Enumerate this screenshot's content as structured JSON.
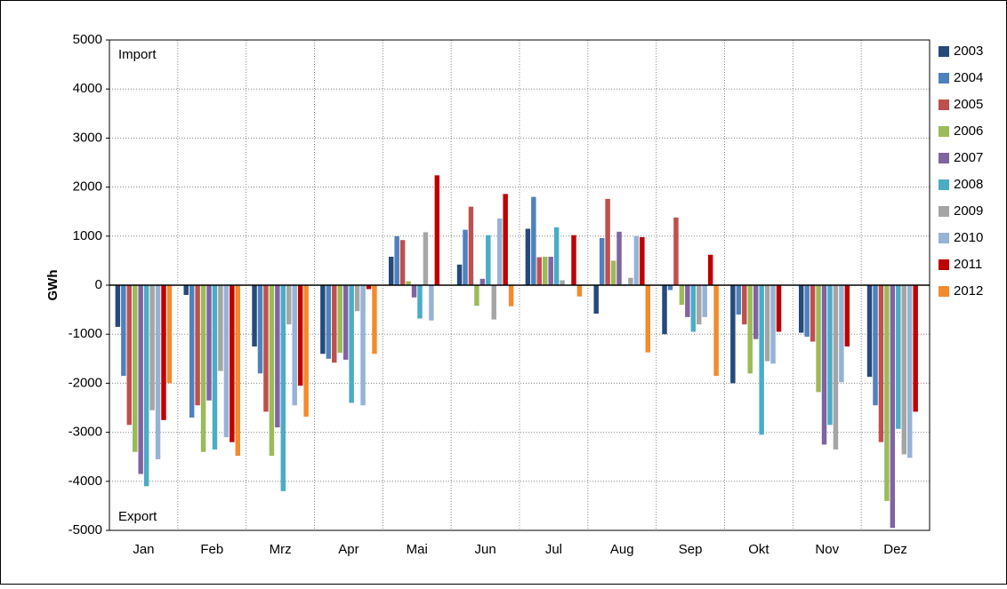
{
  "chart_data": {
    "type": "bar",
    "y_label": "GWh",
    "annotations": [
      "Import",
      "Export"
    ],
    "categories": [
      "Jan",
      "Feb",
      "Mrz",
      "Apr",
      "Mai",
      "Jun",
      "Jul",
      "Aug",
      "Sep",
      "Okt",
      "Nov",
      "Dez"
    ],
    "series": [
      {
        "name": "2003",
        "color": "#254a7c",
        "values": [
          -850,
          -200,
          -1250,
          -1400,
          580,
          420,
          1150,
          -580,
          -1000,
          -2000,
          -970,
          -1870
        ]
      },
      {
        "name": "2004",
        "color": "#4f81bd",
        "values": [
          -1850,
          -2700,
          -1800,
          -1500,
          1000,
          1130,
          1800,
          960,
          -100,
          -600,
          -1050,
          -2450
        ]
      },
      {
        "name": "2005",
        "color": "#c0504d",
        "values": [
          -2850,
          -2450,
          -2580,
          -1580,
          920,
          1600,
          570,
          1760,
          1380,
          -800,
          -1150,
          -3200
        ]
      },
      {
        "name": "2006",
        "color": "#9bbb59",
        "values": [
          -3400,
          -3400,
          -3480,
          -1380,
          80,
          -420,
          580,
          500,
          -400,
          -1800,
          -2180,
          -4400
        ]
      },
      {
        "name": "2007",
        "color": "#8064a2",
        "values": [
          -3850,
          -2350,
          -2900,
          -1520,
          -250,
          130,
          580,
          1090,
          -650,
          -1100,
          -3250,
          -4950
        ]
      },
      {
        "name": "2008",
        "color": "#4bacc6",
        "values": [
          -4100,
          -3350,
          -4200,
          -2400,
          -680,
          1020,
          1180,
          20,
          -950,
          -3050,
          -2850,
          -2930
        ]
      },
      {
        "name": "2009",
        "color": "#a5a5a5",
        "values": [
          -2550,
          -1750,
          -800,
          -530,
          1080,
          -700,
          100,
          150,
          -800,
          -1550,
          -3350,
          -3450
        ]
      },
      {
        "name": "2010",
        "color": "#95b3d7",
        "values": [
          -3550,
          -3100,
          -2450,
          -2450,
          -720,
          1360,
          null,
          1000,
          -650,
          -1600,
          -1980,
          -3520
        ]
      },
      {
        "name": "2011",
        "color": "#c00000",
        "values": [
          -2750,
          -3200,
          -2050,
          -80,
          2240,
          1860,
          1020,
          980,
          620,
          -950,
          -1250,
          -2580
        ]
      },
      {
        "name": "2012",
        "color": "#f38b2c",
        "values": [
          -2000,
          -3480,
          -2680,
          -1400,
          null,
          -430,
          -230,
          -1370,
          -1850,
          null,
          null,
          null
        ]
      }
    ],
    "ylim": [
      -5000,
      5000
    ],
    "yticks": [
      -5000,
      -4000,
      -3000,
      -2000,
      -1000,
      0,
      1000,
      2000,
      3000,
      4000,
      5000
    ],
    "grid": true
  }
}
